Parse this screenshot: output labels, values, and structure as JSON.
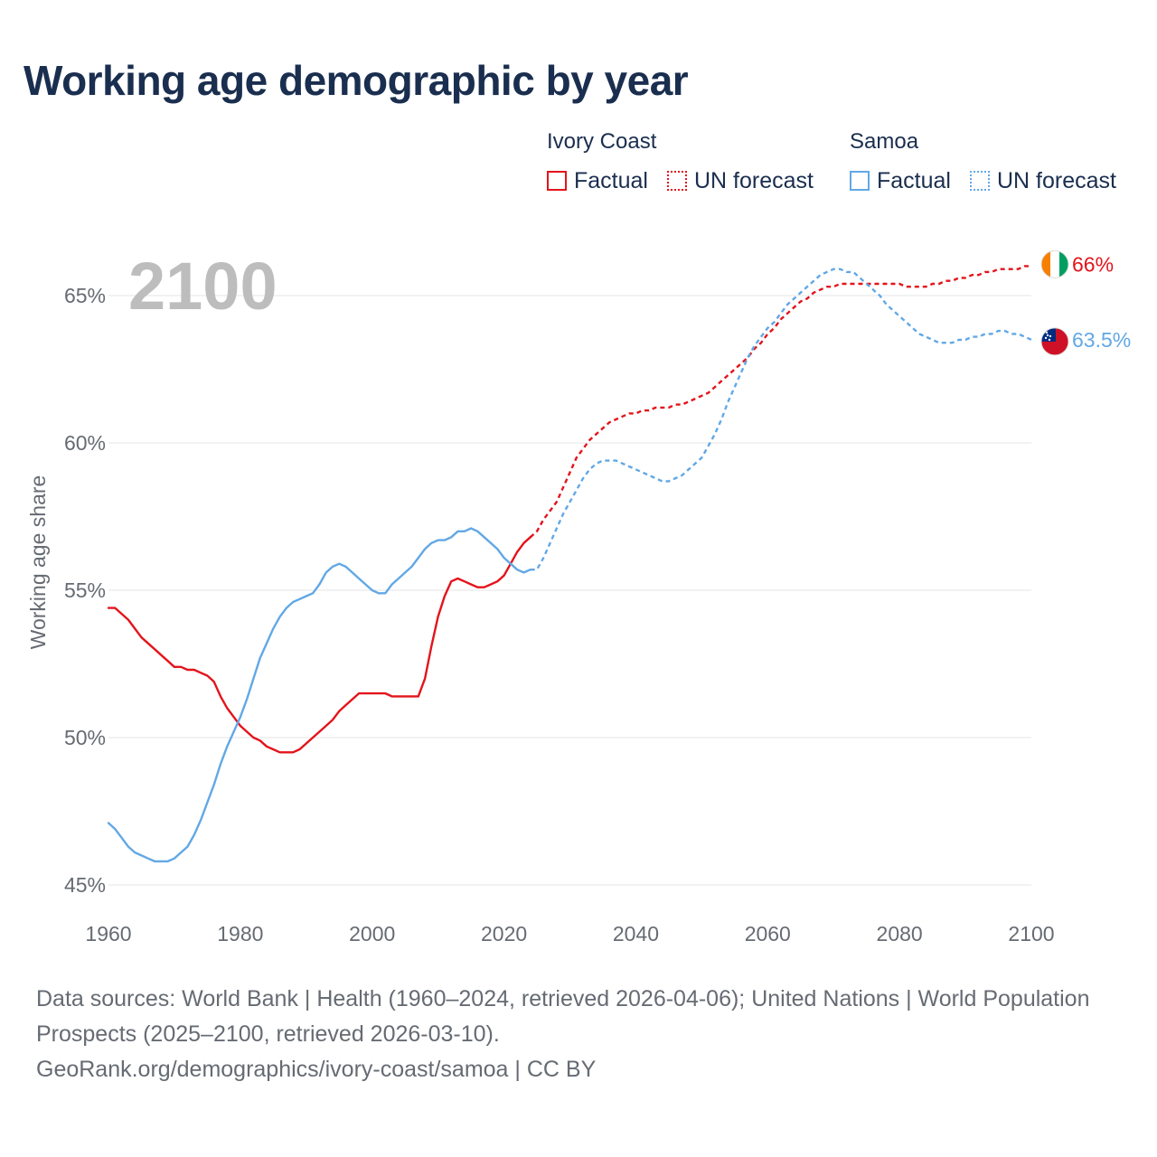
{
  "page": {
    "title": "Working age demographic by year",
    "footer_sources": "Data sources: World Bank | Health (1960–2024, retrieved 2026-04-06); United Nations | World Population Prospects (2025–2100, retrieved 2026-03-10).",
    "footer_url": "GeoRank.org/demographics/ivory-coast/samoa | CC BY"
  },
  "legend": {
    "groups": [
      {
        "name": "Ivory Coast",
        "color": "#e3141b",
        "factual_label": "Factual",
        "forecast_label": "UN forecast"
      },
      {
        "name": "Samoa",
        "color": "#62a8e5",
        "factual_label": "Factual",
        "forecast_label": "UN forecast"
      }
    ]
  },
  "chart_data": {
    "type": "line",
    "title": "Working age demographic by year",
    "year_label": "2100",
    "xlabel": "",
    "ylabel": "Working age share",
    "xlim": [
      1960,
      2100
    ],
    "ylim": [
      45,
      68
    ],
    "x_ticks": [
      1960,
      1980,
      2000,
      2020,
      2040,
      2060,
      2080,
      2100
    ],
    "y_ticks": [
      {
        "value": 45,
        "label": "45%"
      },
      {
        "value": 50,
        "label": "50%"
      },
      {
        "value": 55,
        "label": "55%"
      },
      {
        "value": 60,
        "label": "60%"
      },
      {
        "value": 65,
        "label": "65%"
      }
    ],
    "grid": true,
    "series": [
      {
        "name": "Ivory Coast",
        "color": "#e3141b",
        "flag_icon": "ivory-coast-flag-icon",
        "flag_colors": [
          "#f77f00",
          "#ffffff",
          "#009e60"
        ],
        "end_label": "66%",
        "factual": [
          [
            1960,
            54.4
          ],
          [
            1961,
            54.4
          ],
          [
            1962,
            54.2
          ],
          [
            1963,
            54.0
          ],
          [
            1964,
            53.7
          ],
          [
            1965,
            53.4
          ],
          [
            1966,
            53.2
          ],
          [
            1967,
            53.0
          ],
          [
            1968,
            52.8
          ],
          [
            1969,
            52.6
          ],
          [
            1970,
            52.4
          ],
          [
            1971,
            52.4
          ],
          [
            1972,
            52.3
          ],
          [
            1973,
            52.3
          ],
          [
            1974,
            52.2
          ],
          [
            1975,
            52.1
          ],
          [
            1976,
            51.9
          ],
          [
            1977,
            51.4
          ],
          [
            1978,
            51.0
          ],
          [
            1979,
            50.7
          ],
          [
            1980,
            50.4
          ],
          [
            1981,
            50.2
          ],
          [
            1982,
            50.0
          ],
          [
            1983,
            49.9
          ],
          [
            1984,
            49.7
          ],
          [
            1985,
            49.6
          ],
          [
            1986,
            49.5
          ],
          [
            1987,
            49.5
          ],
          [
            1988,
            49.5
          ],
          [
            1989,
            49.6
          ],
          [
            1990,
            49.8
          ],
          [
            1991,
            50.0
          ],
          [
            1992,
            50.2
          ],
          [
            1993,
            50.4
          ],
          [
            1994,
            50.6
          ],
          [
            1995,
            50.9
          ],
          [
            1996,
            51.1
          ],
          [
            1997,
            51.3
          ],
          [
            1998,
            51.5
          ],
          [
            1999,
            51.5
          ],
          [
            2000,
            51.5
          ],
          [
            2001,
            51.5
          ],
          [
            2002,
            51.5
          ],
          [
            2003,
            51.4
          ],
          [
            2004,
            51.4
          ],
          [
            2005,
            51.4
          ],
          [
            2006,
            51.4
          ],
          [
            2007,
            51.4
          ],
          [
            2008,
            52.0
          ],
          [
            2009,
            53.1
          ],
          [
            2010,
            54.1
          ],
          [
            2011,
            54.8
          ],
          [
            2012,
            55.3
          ],
          [
            2013,
            55.4
          ],
          [
            2014,
            55.3
          ],
          [
            2015,
            55.2
          ],
          [
            2016,
            55.1
          ],
          [
            2017,
            55.1
          ],
          [
            2018,
            55.2
          ],
          [
            2019,
            55.3
          ],
          [
            2020,
            55.5
          ],
          [
            2021,
            55.9
          ],
          [
            2022,
            56.3
          ],
          [
            2023,
            56.6
          ],
          [
            2024,
            56.8
          ]
        ],
        "forecast": [
          [
            2024,
            56.8
          ],
          [
            2025,
            57.0
          ],
          [
            2026,
            57.4
          ],
          [
            2027,
            57.7
          ],
          [
            2028,
            58.0
          ],
          [
            2029,
            58.5
          ],
          [
            2030,
            59.0
          ],
          [
            2031,
            59.5
          ],
          [
            2032,
            59.8
          ],
          [
            2033,
            60.1
          ],
          [
            2034,
            60.3
          ],
          [
            2035,
            60.5
          ],
          [
            2036,
            60.7
          ],
          [
            2037,
            60.8
          ],
          [
            2038,
            60.9
          ],
          [
            2039,
            61.0
          ],
          [
            2040,
            61.0
          ],
          [
            2041,
            61.1
          ],
          [
            2042,
            61.1
          ],
          [
            2043,
            61.2
          ],
          [
            2044,
            61.2
          ],
          [
            2045,
            61.2
          ],
          [
            2046,
            61.3
          ],
          [
            2047,
            61.3
          ],
          [
            2048,
            61.4
          ],
          [
            2049,
            61.5
          ],
          [
            2050,
            61.6
          ],
          [
            2051,
            61.7
          ],
          [
            2052,
            61.9
          ],
          [
            2053,
            62.1
          ],
          [
            2054,
            62.3
          ],
          [
            2055,
            62.5
          ],
          [
            2056,
            62.7
          ],
          [
            2057,
            62.9
          ],
          [
            2058,
            63.2
          ],
          [
            2059,
            63.4
          ],
          [
            2060,
            63.7
          ],
          [
            2061,
            63.9
          ],
          [
            2062,
            64.2
          ],
          [
            2063,
            64.4
          ],
          [
            2064,
            64.6
          ],
          [
            2065,
            64.8
          ],
          [
            2066,
            64.9
          ],
          [
            2067,
            65.1
          ],
          [
            2068,
            65.2
          ],
          [
            2069,
            65.3
          ],
          [
            2070,
            65.3
          ],
          [
            2071,
            65.4
          ],
          [
            2072,
            65.4
          ],
          [
            2073,
            65.4
          ],
          [
            2074,
            65.4
          ],
          [
            2075,
            65.4
          ],
          [
            2076,
            65.4
          ],
          [
            2077,
            65.4
          ],
          [
            2078,
            65.4
          ],
          [
            2079,
            65.4
          ],
          [
            2080,
            65.4
          ],
          [
            2081,
            65.3
          ],
          [
            2082,
            65.3
          ],
          [
            2083,
            65.3
          ],
          [
            2084,
            65.3
          ],
          [
            2085,
            65.4
          ],
          [
            2086,
            65.4
          ],
          [
            2087,
            65.5
          ],
          [
            2088,
            65.5
          ],
          [
            2089,
            65.6
          ],
          [
            2090,
            65.6
          ],
          [
            2091,
            65.7
          ],
          [
            2092,
            65.7
          ],
          [
            2093,
            65.8
          ],
          [
            2094,
            65.8
          ],
          [
            2095,
            65.9
          ],
          [
            2096,
            65.9
          ],
          [
            2097,
            65.9
          ],
          [
            2098,
            65.9
          ],
          [
            2099,
            66.0
          ],
          [
            2100,
            66.0
          ]
        ]
      },
      {
        "name": "Samoa",
        "color": "#62a8e5",
        "flag_icon": "samoa-flag-icon",
        "flag_colors": [
          "#ce1126",
          "#002b7f",
          "#ffffff"
        ],
        "end_label": "63.5%",
        "factual": [
          [
            1960,
            47.1
          ],
          [
            1961,
            46.9
          ],
          [
            1962,
            46.6
          ],
          [
            1963,
            46.3
          ],
          [
            1964,
            46.1
          ],
          [
            1965,
            46.0
          ],
          [
            1966,
            45.9
          ],
          [
            1967,
            45.8
          ],
          [
            1968,
            45.8
          ],
          [
            1969,
            45.8
          ],
          [
            1970,
            45.9
          ],
          [
            1971,
            46.1
          ],
          [
            1972,
            46.3
          ],
          [
            1973,
            46.7
          ],
          [
            1974,
            47.2
          ],
          [
            1975,
            47.8
          ],
          [
            1976,
            48.4
          ],
          [
            1977,
            49.1
          ],
          [
            1978,
            49.7
          ],
          [
            1979,
            50.2
          ],
          [
            1980,
            50.7
          ],
          [
            1981,
            51.3
          ],
          [
            1982,
            52.0
          ],
          [
            1983,
            52.7
          ],
          [
            1984,
            53.2
          ],
          [
            1985,
            53.7
          ],
          [
            1986,
            54.1
          ],
          [
            1987,
            54.4
          ],
          [
            1988,
            54.6
          ],
          [
            1989,
            54.7
          ],
          [
            1990,
            54.8
          ],
          [
            1991,
            54.9
          ],
          [
            1992,
            55.2
          ],
          [
            1993,
            55.6
          ],
          [
            1994,
            55.8
          ],
          [
            1995,
            55.9
          ],
          [
            1996,
            55.8
          ],
          [
            1997,
            55.6
          ],
          [
            1998,
            55.4
          ],
          [
            1999,
            55.2
          ],
          [
            2000,
            55.0
          ],
          [
            2001,
            54.9
          ],
          [
            2002,
            54.9
          ],
          [
            2003,
            55.2
          ],
          [
            2004,
            55.4
          ],
          [
            2005,
            55.6
          ],
          [
            2006,
            55.8
          ],
          [
            2007,
            56.1
          ],
          [
            2008,
            56.4
          ],
          [
            2009,
            56.6
          ],
          [
            2010,
            56.7
          ],
          [
            2011,
            56.7
          ],
          [
            2012,
            56.8
          ],
          [
            2013,
            57.0
          ],
          [
            2014,
            57.0
          ],
          [
            2015,
            57.1
          ],
          [
            2016,
            57.0
          ],
          [
            2017,
            56.8
          ],
          [
            2018,
            56.6
          ],
          [
            2019,
            56.4
          ],
          [
            2020,
            56.1
          ],
          [
            2021,
            55.9
          ],
          [
            2022,
            55.7
          ],
          [
            2023,
            55.6
          ],
          [
            2024,
            55.7
          ]
        ],
        "forecast": [
          [
            2024,
            55.7
          ],
          [
            2025,
            55.7
          ],
          [
            2026,
            56.1
          ],
          [
            2027,
            56.6
          ],
          [
            2028,
            57.1
          ],
          [
            2029,
            57.6
          ],
          [
            2030,
            58.0
          ],
          [
            2031,
            58.4
          ],
          [
            2032,
            58.8
          ],
          [
            2033,
            59.1
          ],
          [
            2034,
            59.3
          ],
          [
            2035,
            59.4
          ],
          [
            2036,
            59.4
          ],
          [
            2037,
            59.4
          ],
          [
            2038,
            59.3
          ],
          [
            2039,
            59.2
          ],
          [
            2040,
            59.1
          ],
          [
            2041,
            59.0
          ],
          [
            2042,
            58.9
          ],
          [
            2043,
            58.8
          ],
          [
            2044,
            58.7
          ],
          [
            2045,
            58.7
          ],
          [
            2046,
            58.8
          ],
          [
            2047,
            58.9
          ],
          [
            2048,
            59.1
          ],
          [
            2049,
            59.3
          ],
          [
            2050,
            59.5
          ],
          [
            2051,
            59.9
          ],
          [
            2052,
            60.3
          ],
          [
            2053,
            60.8
          ],
          [
            2054,
            61.4
          ],
          [
            2055,
            61.9
          ],
          [
            2056,
            62.4
          ],
          [
            2057,
            62.9
          ],
          [
            2058,
            63.3
          ],
          [
            2059,
            63.6
          ],
          [
            2060,
            63.9
          ],
          [
            2061,
            64.1
          ],
          [
            2062,
            64.4
          ],
          [
            2063,
            64.7
          ],
          [
            2064,
            64.9
          ],
          [
            2065,
            65.1
          ],
          [
            2066,
            65.3
          ],
          [
            2067,
            65.5
          ],
          [
            2068,
            65.7
          ],
          [
            2069,
            65.8
          ],
          [
            2070,
            65.9
          ],
          [
            2071,
            65.9
          ],
          [
            2072,
            65.8
          ],
          [
            2073,
            65.8
          ],
          [
            2074,
            65.6
          ],
          [
            2075,
            65.4
          ],
          [
            2076,
            65.2
          ],
          [
            2077,
            65.0
          ],
          [
            2078,
            64.7
          ],
          [
            2079,
            64.5
          ],
          [
            2080,
            64.3
          ],
          [
            2081,
            64.1
          ],
          [
            2082,
            63.9
          ],
          [
            2083,
            63.7
          ],
          [
            2084,
            63.6
          ],
          [
            2085,
            63.5
          ],
          [
            2086,
            63.4
          ],
          [
            2087,
            63.4
          ],
          [
            2088,
            63.4
          ],
          [
            2089,
            63.5
          ],
          [
            2090,
            63.5
          ],
          [
            2091,
            63.6
          ],
          [
            2092,
            63.6
          ],
          [
            2093,
            63.7
          ],
          [
            2094,
            63.7
          ],
          [
            2095,
            63.8
          ],
          [
            2096,
            63.8
          ],
          [
            2097,
            63.7
          ],
          [
            2098,
            63.7
          ],
          [
            2099,
            63.6
          ],
          [
            2100,
            63.5
          ]
        ]
      }
    ]
  }
}
